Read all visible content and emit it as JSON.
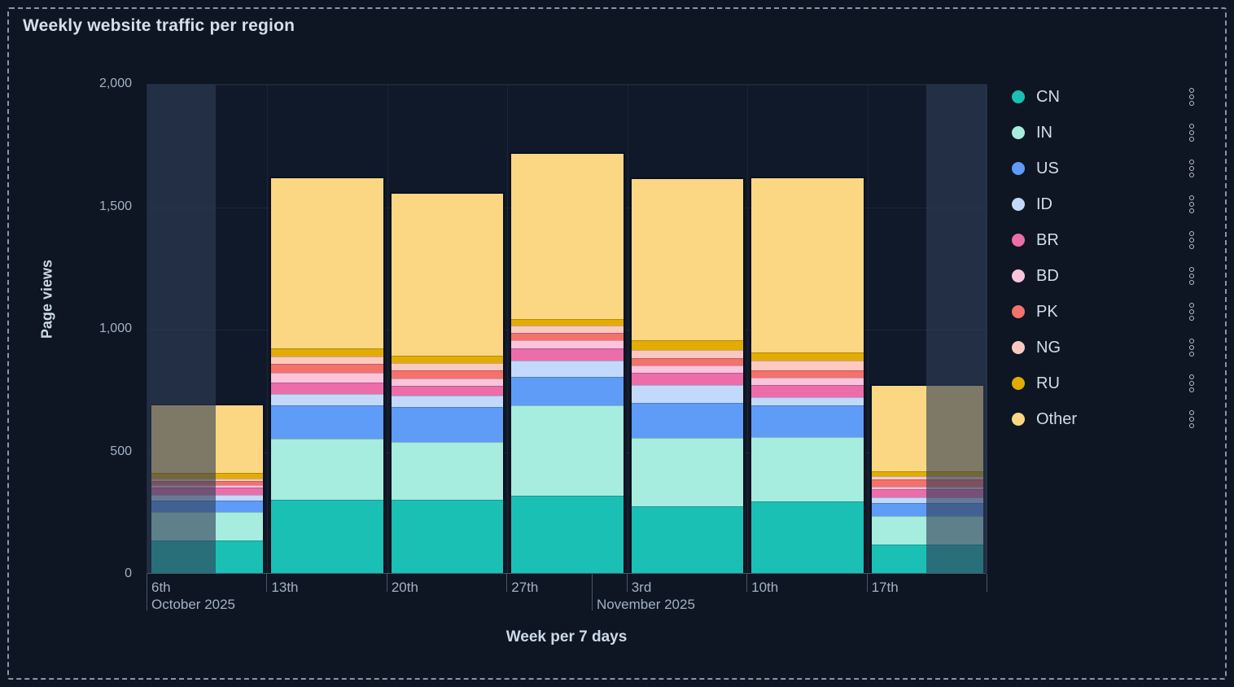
{
  "panel": {
    "title": "Weekly website traffic per region"
  },
  "chart_data": {
    "type": "bar",
    "stacked": true,
    "title": "Weekly website traffic per region",
    "xlabel": "Week per 7 days",
    "ylabel": "Page views",
    "ylim": [
      0,
      2000
    ],
    "grid": true,
    "legend_position": "right",
    "y_ticks": [
      {
        "value": 0,
        "label": "0"
      },
      {
        "value": 500,
        "label": "500"
      },
      {
        "value": 1000,
        "label": "1,000"
      },
      {
        "value": 1500,
        "label": "1,500"
      },
      {
        "value": 2000,
        "label": "2,000"
      }
    ],
    "categories": [
      "6th",
      "13th",
      "20th",
      "27th",
      "3rd",
      "10th",
      "17th"
    ],
    "month_labels": [
      {
        "text": "October 2025",
        "x_fraction": 0.0
      },
      {
        "text": "November 2025",
        "x_fraction": 0.53
      }
    ],
    "series": [
      {
        "name": "CN",
        "color": "#1bc0b4",
        "values": [
          133,
          300,
          300,
          316,
          274,
          293,
          116
        ]
      },
      {
        "name": "IN",
        "color": "#a6ecdf",
        "values": [
          116,
          247,
          236,
          369,
          276,
          263,
          116
        ]
      },
      {
        "name": "US",
        "color": "#5e9cf7",
        "values": [
          47,
          137,
          143,
          116,
          143,
          130,
          53
        ]
      },
      {
        "name": "ID",
        "color": "#c3d9fb",
        "values": [
          23,
          47,
          47,
          66,
          73,
          33,
          23
        ]
      },
      {
        "name": "BR",
        "color": "#ec6daa",
        "values": [
          30,
          48,
          37,
          50,
          53,
          47,
          33
        ]
      },
      {
        "name": "BD",
        "color": "#f9c4dc",
        "values": [
          10,
          40,
          30,
          33,
          30,
          30,
          10
        ]
      },
      {
        "name": "PK",
        "color": "#f5716b",
        "values": [
          17,
          34,
          33,
          30,
          30,
          33,
          30
        ]
      },
      {
        "name": "NG",
        "color": "#fcc9c0",
        "values": [
          10,
          32,
          33,
          30,
          33,
          37,
          13
        ]
      },
      {
        "name": "RU",
        "color": "#e3ac02",
        "values": [
          23,
          33,
          27,
          27,
          37,
          33,
          23
        ]
      },
      {
        "name": "Other",
        "color": "#fbd784",
        "values": [
          276,
          692,
          664,
          673,
          661,
          711,
          348
        ]
      }
    ],
    "bar_totals": [
      685,
      1610,
      1550,
      1710,
      1610,
      1610,
      765
    ],
    "out_of_range_regions_x_fraction": [
      [
        0.0,
        0.0814
      ],
      [
        0.927,
        1.0
      ]
    ]
  }
}
